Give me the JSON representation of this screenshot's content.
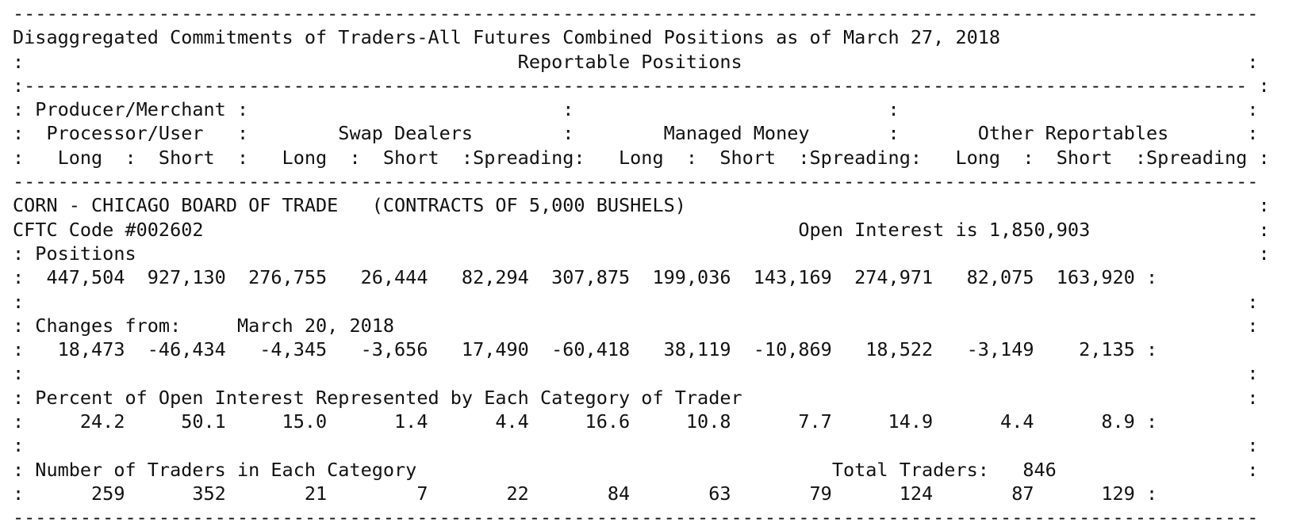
{
  "report_lines": [
    "---------------------------------------------------------------------------------------------------------------",
    "Disaggregated Commitments of Traders-All Futures Combined Positions as of March 27, 2018",
    ":                                            Reportable Positions                                             :",
    ":------------------------------------------------------------------------------------------------------------- :",
    ": Producer/Merchant :                            :                            :                               :",
    ":  Processor/User   :        Swap Dealers        :        Managed Money       :       Other Reportables       :",
    ":   Long  :  Short  :   Long  :  Short  :Spreading:   Long  :  Short  :Spreading:   Long  :  Short  :Spreading :",
    "---------------------------------------------------------------------------------------------------------------",
    "CORN - CHICAGO BOARD OF TRADE   (CONTRACTS OF 5,000 BUSHELS)                                                   :",
    "CFTC Code #002602                                                     Open Interest is 1,850,903               :",
    ": Positions                                                                                                    :",
    ":  447,504  927,130  276,755   26,444   82,294  307,875  199,036  143,169  274,971   82,075  163,920 :",
    ":                                                                                                             :",
    ": Changes from:     March 20, 2018                                                                            :",
    ":   18,473  -46,434   -4,345   -3,656   17,490  -60,418   38,119  -10,869   18,522   -3,149    2,135 :",
    ":                                                                                                             :",
    ": Percent of Open Interest Represented by Each Category of Trader                                             :",
    ":     24.2     50.1     15.0      1.4      4.4     16.6     10.8      7.7     14.9      4.4      8.9 :",
    ":                                                                                                             :",
    ": Number of Traders in Each Category                                     Total Traders:   846                 :",
    ":      259      352       21        7       22       84       63       79      124       87      129 :",
    "---------------------------------------------------------------------------------------------------------------"
  ],
  "meta": {
    "title": "Disaggregated Commitments of Traders-All Futures Combined Positions as of March 27, 2018",
    "section_header": "Reportable Positions",
    "categories": [
      "Producer/Merchant Processor/User",
      "Swap Dealers",
      "Managed Money",
      "Other Reportables"
    ],
    "commodity": "CORN - CHICAGO BOARD OF TRADE",
    "contract_unit": "(CONTRACTS OF 5,000 BUSHELS)",
    "cftc_code": "CFTC Code #002602",
    "open_interest": "1,850,903",
    "changes_from": "March 20, 2018",
    "total_traders": "846"
  }
}
